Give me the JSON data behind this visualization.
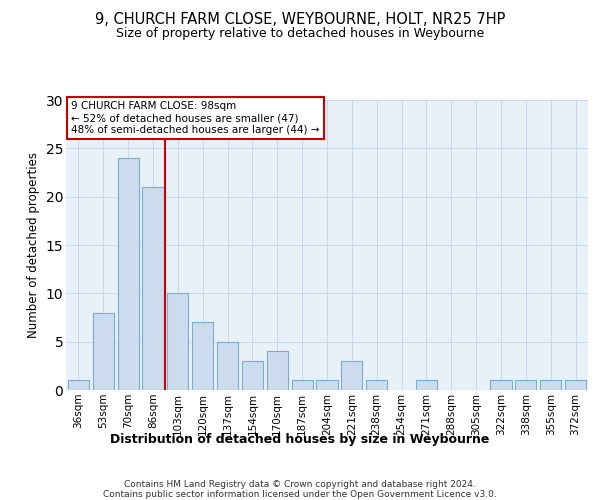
{
  "title": "9, CHURCH FARM CLOSE, WEYBOURNE, HOLT, NR25 7HP",
  "subtitle": "Size of property relative to detached houses in Weybourne",
  "xlabel": "Distribution of detached houses by size in Weybourne",
  "ylabel": "Number of detached properties",
  "bar_labels": [
    "36sqm",
    "53sqm",
    "70sqm",
    "86sqm",
    "103sqm",
    "120sqm",
    "137sqm",
    "154sqm",
    "170sqm",
    "187sqm",
    "204sqm",
    "221sqm",
    "238sqm",
    "254sqm",
    "271sqm",
    "288sqm",
    "305sqm",
    "322sqm",
    "338sqm",
    "355sqm",
    "372sqm"
  ],
  "bar_values": [
    1,
    8,
    24,
    21,
    10,
    7,
    5,
    3,
    4,
    1,
    1,
    3,
    1,
    0,
    1,
    0,
    0,
    1,
    1,
    1,
    1
  ],
  "bar_color": "#ccdcee",
  "bar_edgecolor": "#7aacd0",
  "vline_x": 3.5,
  "vline_color": "#cc0000",
  "annotation_box_text": "9 CHURCH FARM CLOSE: 98sqm\n← 52% of detached houses are smaller (47)\n48% of semi-detached houses are larger (44) →",
  "ylim": [
    0,
    30
  ],
  "yticks": [
    0,
    5,
    10,
    15,
    20,
    25,
    30
  ],
  "grid_color": "#c8d8ec",
  "background_color": "#e8f0f8",
  "footer_line1": "Contains HM Land Registry data © Crown copyright and database right 2024.",
  "footer_line2": "Contains public sector information licensed under the Open Government Licence v3.0."
}
